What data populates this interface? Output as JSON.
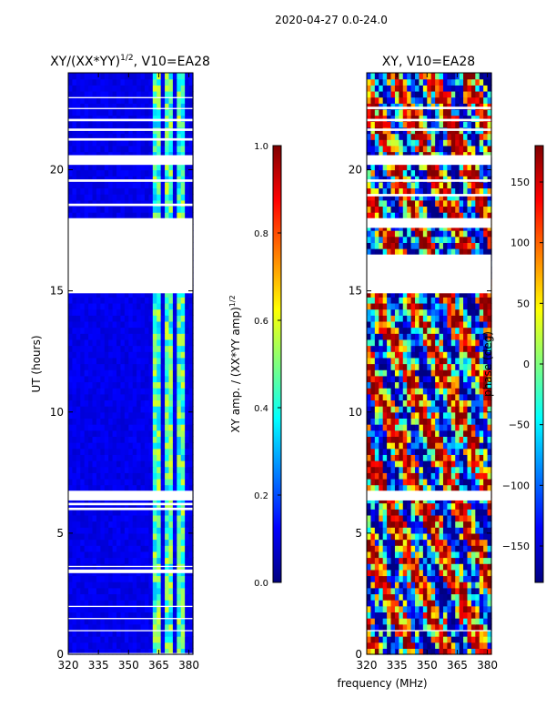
{
  "suptitle": "2020-04-27 0.0-24.0",
  "xlabel_shared": "frequency (MHz)",
  "colors": {
    "jet": [
      "#00007f",
      "#0000ff",
      "#007fff",
      "#00ffff",
      "#7fff7f",
      "#ffff00",
      "#ff7f00",
      "#ff0000",
      "#7f0000"
    ],
    "gap": "#ffffff",
    "axis": "#000000"
  },
  "chart_data": [
    {
      "type": "heatmap",
      "title_main": "XY/(XX*YY)",
      "title_exp": "1/2",
      "title_tail": ", V10=EA28",
      "ylabel": "UT (hours)",
      "xlabel": "",
      "xlim": [
        320,
        382
      ],
      "ylim": [
        0,
        24
      ],
      "xticks": [
        "320",
        "335",
        "350",
        "365",
        "380"
      ],
      "xtick_values": [
        320,
        335,
        350,
        365,
        380
      ],
      "yticks": [
        "0",
        "5",
        "10",
        "15",
        "20"
      ],
      "ytick_values": [
        0,
        5,
        10,
        15,
        20
      ],
      "colorbar": {
        "label": "XY amp. / (XX*YY amp)",
        "label_exp": "1/2",
        "range": [
          0.0,
          1.0
        ],
        "ticks": [
          "0.0",
          "0.2",
          "0.4",
          "0.6",
          "0.8",
          "1.0"
        ],
        "tick_values": [
          0.0,
          0.2,
          0.4,
          0.6,
          0.8,
          1.0
        ]
      },
      "flagged_ut_bands": [
        [
          0.0,
          0.05
        ],
        [
          0.95,
          1.0
        ],
        [
          1.45,
          1.5
        ],
        [
          1.95,
          2.0
        ],
        [
          3.35,
          3.5
        ],
        [
          3.6,
          3.65
        ],
        [
          5.95,
          6.05
        ],
        [
          6.15,
          6.25
        ],
        [
          6.35,
          6.75
        ],
        [
          14.9,
          18.0
        ],
        [
          18.5,
          18.6
        ],
        [
          19.5,
          19.6
        ],
        [
          20.2,
          20.6
        ],
        [
          21.2,
          21.3
        ],
        [
          21.6,
          21.7
        ],
        [
          22.0,
          22.1
        ],
        [
          22.5,
          22.55
        ],
        [
          22.95,
          23.0
        ]
      ],
      "bright_channels_mhz": [
        [
          362,
          366
        ],
        [
          368,
          371
        ],
        [
          374,
          377
        ]
      ],
      "background_level": 0.08,
      "bright_level": 0.5
    },
    {
      "type": "heatmap",
      "title_main": "XY, V10=EA28",
      "ylabel": "",
      "xlabel": "frequency (MHz)",
      "xlim": [
        320,
        382
      ],
      "ylim": [
        0,
        24
      ],
      "xticks": [
        "320",
        "335",
        "350",
        "365",
        "380"
      ],
      "xtick_values": [
        320,
        335,
        350,
        365,
        380
      ],
      "yticks": [
        "0",
        "5",
        "10",
        "15",
        "20"
      ],
      "ytick_values": [
        0,
        5,
        10,
        15,
        20
      ],
      "colorbar": {
        "label": "phase (deg)",
        "range": [
          -180,
          180
        ],
        "ticks": [
          "−150",
          "−100",
          "−50",
          "0",
          "50",
          "100",
          "150"
        ],
        "tick_values": [
          -150,
          -100,
          -50,
          0,
          50,
          100,
          150
        ]
      },
      "flagged_ut_bands": [
        [
          0.95,
          1.0
        ],
        [
          6.35,
          6.75
        ],
        [
          14.9,
          16.5
        ],
        [
          17.6,
          18.0
        ],
        [
          18.9,
          19.0
        ],
        [
          19.5,
          19.6
        ],
        [
          20.2,
          20.6
        ],
        [
          21.6,
          21.7
        ],
        [
          22.0,
          22.1
        ],
        [
          22.5,
          22.6
        ]
      ]
    }
  ]
}
